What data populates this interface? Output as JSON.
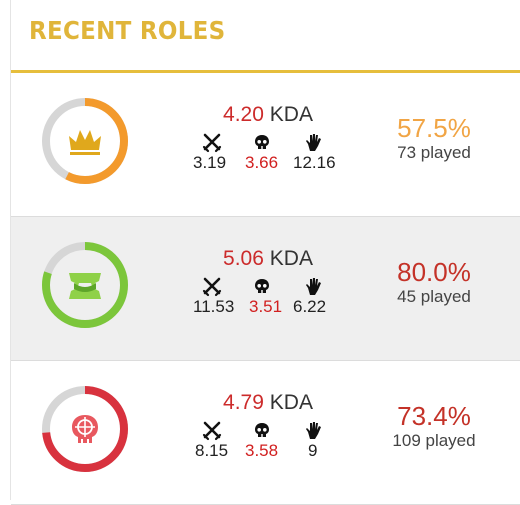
{
  "header": {
    "title": "RECENT ROLES"
  },
  "colors": {
    "accent": "#e6be3c",
    "orange": "#f39a2c",
    "green": "#7cc63b",
    "red": "#d8323e",
    "pct_gold": "#f1a545",
    "pct_red": "#c43228"
  },
  "roles": [
    {
      "role_icon": "crown-icon",
      "ring_fraction": 0.575,
      "ring_color": "#f39a2c",
      "kda_value": "4.20",
      "kda_label": "KDA",
      "kills": "3.19",
      "deaths": "3.66",
      "assists": "12.16",
      "win_pct": "57.5%",
      "win_color": "#f1a545",
      "played": "73 played"
    },
    {
      "role_icon": "fangs-icon",
      "ring_fraction": 0.8,
      "ring_color": "#7cc63b",
      "kda_value": "5.06",
      "kda_label": "KDA",
      "kills": "11.53",
      "deaths": "3.51",
      "assists": "6.22",
      "win_pct": "80.0%",
      "win_color": "#c43228",
      "played": "45 played"
    },
    {
      "role_icon": "skull-crosshair-icon",
      "ring_fraction": 0.734,
      "ring_color": "#d8323e",
      "kda_value": "4.79",
      "kda_label": "KDA",
      "kills": "8.15",
      "deaths": "3.58",
      "assists": "9",
      "win_pct": "73.4%",
      "win_color": "#c43228",
      "played": "109 played"
    }
  ],
  "stat_icons": {
    "kills": "crossed-swords-icon",
    "deaths": "skull-icon",
    "assists": "hand-icon"
  }
}
